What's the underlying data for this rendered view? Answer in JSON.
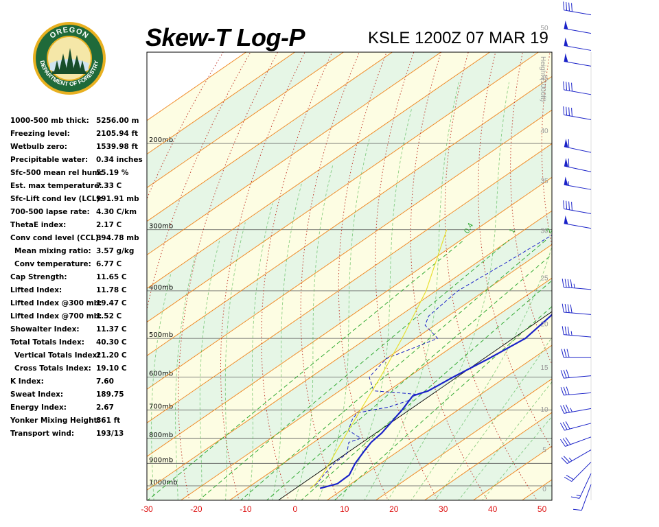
{
  "header": {
    "title": "Skew-T Log-P",
    "station": "KSLE 1200Z 07 MAR 19"
  },
  "logo": {
    "top_text": "OREGON",
    "ring_text": "DEPARTMENT OF FORESTRY",
    "ring_color": "#1f6a3a",
    "gold_color": "#e8b020"
  },
  "stats": [
    {
      "label": "1000-500 mb thick:",
      "value": "5256.00 m"
    },
    {
      "label": "Freezing level:",
      "value": "2105.94 ft"
    },
    {
      "label": "Wetbulb zero:",
      "value": "1539.98 ft"
    },
    {
      "label": "Precipitable water:",
      "value": "0.34 inches"
    },
    {
      "label": "Sfc-500 mean rel hum:",
      "value": "55.19 %"
    },
    {
      "label": "Est. max temperature:",
      "value": "7.33 C"
    },
    {
      "label": "Sfc-Lift cond lev (LCL):",
      "value": "991.91 mb"
    },
    {
      "label": "700-500 lapse rate:",
      "value": "4.30 C/km"
    },
    {
      "label": "ThetaE index:",
      "value": "2.17 C"
    },
    {
      "label": "Conv cond level (CCL):",
      "value": "894.78 mb"
    },
    {
      "label": "Mean mixing ratio:",
      "value": "3.57 g/kg",
      "indent": true
    },
    {
      "label": "Conv temperature:",
      "value": "6.77 C",
      "indent": true
    },
    {
      "label": "Cap Strength:",
      "value": "11.65 C"
    },
    {
      "label": "Lifted Index:",
      "value": "11.78 C"
    },
    {
      "label": "Lifted Index @300 mb:",
      "value": "19.47 C"
    },
    {
      "label": "Lifted Index @700 mb:",
      "value": "1.52 C"
    },
    {
      "label": "Showalter Index:",
      "value": "11.37 C"
    },
    {
      "label": "Total Totals Index:",
      "value": "40.30 C"
    },
    {
      "label": "Vertical Totals Index:",
      "value": "21.20 C",
      "indent": true
    },
    {
      "label": "Cross Totals Index:",
      "value": "19.10 C",
      "indent": true
    },
    {
      "label": "K Index:",
      "value": "7.60"
    },
    {
      "label": "Sweat Index:",
      "value": "189.75"
    },
    {
      "label": "Energy Index:",
      "value": "2.67"
    },
    {
      "label": "Yonker Mixing Height:",
      "value": "861 ft"
    },
    {
      "label": "Transport wind:",
      "value": "193/13"
    }
  ],
  "chart_data": {
    "type": "line",
    "x_ticks": [
      -30,
      -20,
      -10,
      0,
      10,
      20,
      30,
      40,
      50
    ],
    "xlim": [
      -30,
      52
    ],
    "pressure_levels": [
      {
        "p": 200,
        "label": "200mb"
      },
      {
        "p": 300,
        "label": "300mb"
      },
      {
        "p": 400,
        "label": "400mb"
      },
      {
        "p": 500,
        "label": "500mb"
      },
      {
        "p": 600,
        "label": "600mb"
      },
      {
        "p": 700,
        "label": "700mb"
      },
      {
        "p": 800,
        "label": "800mb"
      },
      {
        "p": 900,
        "label": "900mb"
      },
      {
        "p": 1000,
        "label": "1000mb"
      }
    ],
    "height_axis_label": "Height (1000ft)",
    "height_ticks": [
      {
        "label": "0",
        "p": 1013
      },
      {
        "label": "5",
        "p": 843
      },
      {
        "label": "10",
        "p": 697
      },
      {
        "label": "15",
        "p": 572
      },
      {
        "label": "20",
        "p": 466
      },
      {
        "label": "25",
        "p": 376
      },
      {
        "label": "30",
        "p": 301
      },
      {
        "label": "35",
        "p": 238
      },
      {
        "label": "40",
        "p": 188
      },
      {
        "label": "45",
        "p": 147
      },
      {
        "label": "50",
        "p": 116
      }
    ],
    "mixing_ratio_labels": [
      "0.4",
      "1",
      "2",
      "3",
      "5",
      "8"
    ],
    "series": [
      {
        "role": "temperature",
        "color": "#1a22c8",
        "points": [
          [
            5.0,
            1012
          ],
          [
            7.2,
            990
          ],
          [
            7.0,
            950
          ],
          [
            4.8,
            900
          ],
          [
            3.0,
            850
          ],
          [
            1.8,
            815
          ],
          [
            1.2,
            780
          ],
          [
            -1.5,
            700
          ],
          [
            -3.5,
            655
          ],
          [
            -1.8,
            640
          ],
          [
            -0.8,
            600
          ],
          [
            1.0,
            550
          ],
          [
            2.5,
            500
          ],
          [
            1.0,
            450
          ],
          [
            -1.5,
            400
          ],
          [
            -5.5,
            350
          ],
          [
            -10.0,
            300
          ],
          [
            -15.0,
            250
          ],
          [
            -20.8,
            220
          ],
          [
            -25.0,
            200
          ],
          [
            -34.0,
            180
          ],
          [
            -39.5,
            165
          ],
          [
            -45.0,
            150
          ],
          [
            -51.0,
            135
          ],
          [
            -53.0,
            130
          ],
          [
            -56.5,
            120
          ]
        ]
      },
      {
        "role": "dewpoint",
        "color": "#1a22c8",
        "points": [
          [
            3.0,
            1012
          ],
          [
            3.0,
            990
          ],
          [
            1.8,
            950
          ],
          [
            0.5,
            900
          ],
          [
            0.2,
            860
          ],
          [
            -2.8,
            815
          ],
          [
            -1.5,
            800
          ],
          [
            -6.5,
            770
          ],
          [
            -9.0,
            730
          ],
          [
            -9.8,
            710
          ],
          [
            -7.5,
            700
          ],
          [
            -5.0,
            690
          ],
          [
            -3.0,
            670
          ],
          [
            -3.5,
            650
          ],
          [
            -13.0,
            640
          ],
          [
            -18.0,
            600
          ],
          [
            -20.0,
            550
          ],
          [
            -15.5,
            500
          ],
          [
            -22.0,
            470
          ],
          [
            -24.0,
            450
          ],
          [
            -25.5,
            400
          ],
          [
            -24.0,
            350
          ],
          [
            -22.5,
            300
          ],
          [
            -26.5,
            250
          ],
          [
            -28.5,
            200
          ],
          [
            -34.5,
            180
          ],
          [
            -40.0,
            160
          ],
          [
            -42.0,
            150
          ],
          [
            -45.0,
            140
          ],
          [
            -43.5,
            130
          ],
          [
            -49.0,
            125
          ],
          [
            -49.0,
            115
          ]
        ]
      },
      {
        "role": "parcel",
        "color": "#e8e030",
        "points": [
          [
            3.0,
            1012
          ],
          [
            2.8,
            992
          ],
          [
            1.5,
            950
          ],
          [
            -0.5,
            900
          ],
          [
            -2.7,
            850
          ],
          [
            -5.0,
            800
          ],
          [
            -10.0,
            700
          ],
          [
            -15.7,
            600
          ],
          [
            -22.8,
            500
          ],
          [
            -32.0,
            400
          ],
          [
            -46.0,
            300
          ]
        ]
      }
    ],
    "wind_barbs": [
      {
        "p": 1000,
        "dir": 200,
        "spd": 10
      },
      {
        "p": 950,
        "dir": 205,
        "spd": 15
      },
      {
        "p": 900,
        "dir": 225,
        "spd": 20
      },
      {
        "p": 850,
        "dir": 240,
        "spd": 25
      },
      {
        "p": 800,
        "dir": 250,
        "spd": 30
      },
      {
        "p": 750,
        "dir": 255,
        "spd": 30
      },
      {
        "p": 700,
        "dir": 260,
        "spd": 35
      },
      {
        "p": 650,
        "dir": 265,
        "spd": 30
      },
      {
        "p": 600,
        "dir": 265,
        "spd": 30
      },
      {
        "p": 550,
        "dir": 270,
        "spd": 30
      },
      {
        "p": 500,
        "dir": 275,
        "spd": 35
      },
      {
        "p": 450,
        "dir": 275,
        "spd": 40
      },
      {
        "p": 400,
        "dir": 275,
        "spd": 45
      },
      {
        "p": 300,
        "dir": 280,
        "spd": 50
      },
      {
        "p": 280,
        "dir": 280,
        "spd": 40
      },
      {
        "p": 250,
        "dir": 280,
        "spd": 55
      },
      {
        "p": 230,
        "dir": 282,
        "spd": 60
      },
      {
        "p": 210,
        "dir": 282,
        "spd": 60
      },
      {
        "p": 180,
        "dir": 280,
        "spd": 40
      },
      {
        "p": 160,
        "dir": 280,
        "spd": 40
      },
      {
        "p": 140,
        "dir": 280,
        "spd": 50
      },
      {
        "p": 130,
        "dir": 280,
        "spd": 50
      },
      {
        "p": 120,
        "dir": 280,
        "spd": 50
      },
      {
        "p": 110,
        "dir": 280,
        "spd": 40
      }
    ]
  }
}
